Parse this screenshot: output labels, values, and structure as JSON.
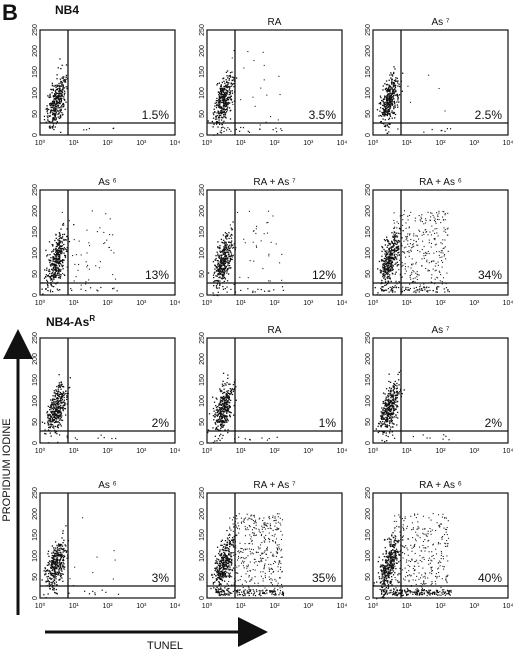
{
  "panel_label": "B",
  "x_tick_labels": [
    "10⁰",
    "10¹",
    "10²",
    "10³",
    "10⁴"
  ],
  "y_tick_labels": [
    "0",
    "50",
    "100",
    "150",
    "200",
    "250"
  ],
  "y_axis_label": "PROPIDIUM IODINE",
  "x_axis_label": "TUNEL",
  "groups": [
    {
      "label": "NB4",
      "rows": [
        [
          {
            "percent": "1.5%"
          },
          {
            "title": "RA",
            "percent": "3.5%"
          },
          {
            "title": "As ⁷",
            "percent": "2.5%"
          }
        ],
        [
          {
            "title": "As ⁶",
            "percent": "13%"
          },
          {
            "title": "RA + As ⁷",
            "percent": "12%"
          },
          {
            "title": "RA + As ⁶",
            "percent": "34%"
          }
        ]
      ]
    },
    {
      "label": "NB4-As",
      "label_sup": "R",
      "rows": [
        [
          {
            "percent": "2%"
          },
          {
            "title": "RA",
            "percent": "1%"
          },
          {
            "title": "As ⁷",
            "percent": "2%"
          }
        ],
        [
          {
            "title": "As ⁶",
            "percent": "3%"
          },
          {
            "title": "RA + As ⁷",
            "percent": "35%"
          },
          {
            "title": "RA + As ⁶",
            "percent": "40%"
          }
        ]
      ]
    }
  ]
}
